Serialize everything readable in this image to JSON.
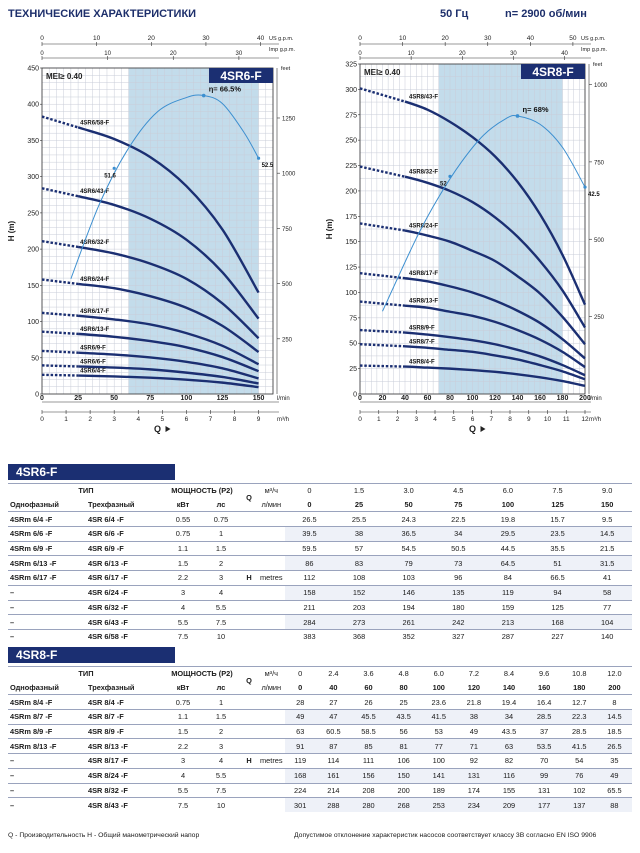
{
  "header": {
    "title": "ТЕХНИЧЕСКИЕ ХАРАКТЕРИСТИКИ",
    "freq": "50 Гц",
    "speed": "n= 2900 об/мин"
  },
  "chart_data": [
    {
      "type": "line",
      "model": "4SR6-F",
      "mei": "MEI≥ 0.40",
      "eff_label": "η= 66.5%",
      "x": [
        0,
        25,
        50,
        75,
        100,
        125,
        150
      ],
      "series": [
        {
          "name": "4SR6/58-F",
          "values": [
            383,
            368,
            352,
            327,
            287,
            227,
            140
          ]
        },
        {
          "name": "4SR6/43-F",
          "values": [
            284,
            273,
            261,
            242,
            213,
            168,
            104
          ]
        },
        {
          "name": "4SR6/32-F",
          "values": [
            211,
            203,
            194,
            180,
            159,
            125,
            77
          ]
        },
        {
          "name": "4SR6/24-F",
          "values": [
            158,
            152,
            146,
            135,
            119,
            94,
            58
          ]
        },
        {
          "name": "4SR6/17-F",
          "values": [
            112,
            108,
            103,
            96,
            84,
            66.5,
            41
          ]
        },
        {
          "name": "4SR6/13-F",
          "values": [
            86,
            83,
            79,
            73,
            64.5,
            51,
            31.5
          ]
        },
        {
          "name": "4SR6/9-F",
          "values": [
            59.5,
            57,
            54.5,
            50.5,
            44.5,
            35.5,
            21.5
          ]
        },
        {
          "name": "4SR6/6-F",
          "values": [
            39.5,
            38,
            36.5,
            34,
            29.5,
            23.5,
            14.5
          ]
        },
        {
          "name": "4SR6/4-F",
          "values": [
            26.5,
            25.5,
            24.3,
            22.5,
            19.8,
            15.7,
            9.5
          ]
        }
      ],
      "efficiency": {
        "x": [
          20,
          40,
          60,
          80,
          100,
          112,
          125,
          140,
          150
        ],
        "y": [
          17.1,
          28.3,
          36.5,
          41.9,
          44.0,
          44.3,
          43.1,
          38.8,
          35.0
        ],
        "labels": [
          {
            "x": 50,
            "y": 33.5,
            "text": "51.6"
          },
          {
            "x": 150,
            "y": 35.0,
            "text": "52.5"
          }
        ]
      },
      "band": [
        60,
        150
      ],
      "xlabel": "Q",
      "ylabel": "H (m)",
      "xlim": [
        0,
        160
      ],
      "ylim": [
        0,
        450
      ],
      "x_ticks": [
        "0",
        "25",
        "50",
        "75",
        "100",
        "125",
        "150"
      ],
      "x_unit": "l/min",
      "y_ticks": [
        "0",
        "50",
        "100",
        "150",
        "200",
        "250",
        "300",
        "350",
        "400",
        "450"
      ],
      "top_ticks": [
        "0",
        "10",
        "20",
        "30",
        "40"
      ],
      "top_unit": "US g.p.m.",
      "top_values": [
        0,
        10,
        20,
        30,
        40
      ],
      "bottom_ticks": [
        "0",
        "1",
        "2",
        "3",
        "4",
        "5",
        "6",
        "7",
        "8",
        "9"
      ],
      "bottom_unit": "m³/h",
      "bottom_values": [
        0,
        1,
        2,
        3,
        4,
        5,
        6,
        7,
        8,
        9
      ],
      "right_ticks": [
        "250",
        "500",
        "750",
        "1000",
        "1250"
      ],
      "right_unit": "feet",
      "right_values": [
        76.2,
        152.4,
        228.6,
        304.8,
        381.0
      ],
      "imp_ticks": [
        "0",
        "10",
        "20",
        "30"
      ],
      "imp_unit": "Imp g.p.m.",
      "imp_values": [
        0,
        10,
        20,
        30
      ]
    },
    {
      "type": "line",
      "model": "4SR8-F",
      "mei": "MEI≥ 0.40",
      "eff_label": "η= 68%",
      "x": [
        0,
        40,
        60,
        80,
        100,
        120,
        140,
        160,
        180,
        200
      ],
      "series": [
        {
          "name": "4SR8/43-F",
          "values": [
            301,
            288,
            280,
            268,
            253,
            234,
            209,
            177,
            137,
            88
          ]
        },
        {
          "name": "4SR8/32-F",
          "values": [
            224,
            214,
            208,
            200,
            189,
            174,
            155,
            131,
            102,
            65.5
          ]
        },
        {
          "name": "4SR8/24-F",
          "values": [
            168,
            161,
            156,
            150,
            141,
            131,
            116,
            99,
            76,
            49
          ]
        },
        {
          "name": "4SR8/17-F",
          "values": [
            119,
            114,
            111,
            106,
            100,
            92,
            82,
            70,
            54,
            35
          ]
        },
        {
          "name": "4SR8/13-F",
          "values": [
            91,
            87,
            85,
            81,
            77,
            71,
            63,
            53.5,
            41.5,
            26.5
          ]
        },
        {
          "name": "4SR8/9-F",
          "values": [
            63,
            60.5,
            58.5,
            56,
            53,
            49,
            43.5,
            37,
            28.5,
            18.5
          ]
        },
        {
          "name": "4SR8/7-F",
          "values": [
            49,
            47,
            45.5,
            43.5,
            41.5,
            38,
            34,
            28.5,
            22.3,
            14.5
          ]
        },
        {
          "name": "4SR8/4-F",
          "values": [
            28,
            27,
            26,
            25,
            23.6,
            21.8,
            19.4,
            16.4,
            12.7,
            8
          ]
        }
      ],
      "efficiency": {
        "x": [
          20,
          50,
          70,
          90,
          110,
          130,
          140,
          160,
          180,
          200
        ],
        "y": [
          10,
          18.8,
          23.8,
          28.0,
          31.3,
          33.3,
          33.6,
          32.6,
          29.8,
          25.0
        ],
        "labels": [
          {
            "x": 80,
            "y": 26.3,
            "text": "52"
          },
          {
            "x": 200,
            "y": 25.0,
            "text": "42.5"
          }
        ]
      },
      "band": [
        70,
        180
      ],
      "xlabel": "Q",
      "ylabel": "H (m)",
      "xlim": [
        0,
        200
      ],
      "ylim": [
        0,
        325
      ],
      "x_ticks": [
        "0",
        "20",
        "40",
        "60",
        "80",
        "100",
        "120",
        "140",
        "160",
        "180",
        "200"
      ],
      "x_unit": "l/min",
      "y_ticks": [
        "0",
        "25",
        "50",
        "75",
        "100",
        "125",
        "150",
        "175",
        "200",
        "225",
        "250",
        "275",
        "300",
        "325"
      ],
      "top_ticks": [
        "0",
        "10",
        "20",
        "30",
        "40",
        "50"
      ],
      "top_unit": "US g.p.m.",
      "top_values": [
        0,
        10,
        20,
        30,
        40,
        50
      ],
      "bottom_ticks": [
        "0",
        "1",
        "2",
        "3",
        "4",
        "5",
        "6",
        "7",
        "8",
        "9",
        "10",
        "11",
        "12"
      ],
      "bottom_unit": "m³/h",
      "bottom_values": [
        0,
        1,
        2,
        3,
        4,
        5,
        6,
        7,
        8,
        9,
        10,
        11,
        12
      ],
      "right_ticks": [
        "250",
        "500",
        "750",
        "1000"
      ],
      "right_unit": "feet",
      "right_values": [
        76.2,
        152.4,
        228.6,
        304.8
      ],
      "imp_ticks": [
        "0",
        "10",
        "20",
        "30",
        "40"
      ],
      "imp_unit": "Imp g.p.m.",
      "imp_values": [
        0,
        10,
        20,
        30,
        40
      ]
    }
  ],
  "tables": [
    {
      "title": "4SR6-F",
      "type_label": "ТИП",
      "power_label": "МОЩНОСТЬ (P2)",
      "q_label": "Q",
      "single_label": "Однофазный",
      "three_label": "Трехфазный",
      "kw_label": "кВт",
      "hp_label": "лс",
      "unit1": "м³/ч",
      "unit2": "л/мин",
      "h_label": "H",
      "h_unit": "metres",
      "q_m3h": [
        "0",
        "1.5",
        "3.0",
        "4.5",
        "6.0",
        "7.5",
        "9.0"
      ],
      "q_lmin": [
        "0",
        "25",
        "50",
        "75",
        "100",
        "125",
        "150"
      ],
      "rows": [
        {
          "single": "4SRm 6/4  -F",
          "three": "4SR 6/4  -F",
          "kw": "0.55",
          "hp": "0.75",
          "h": [
            "26.5",
            "25.5",
            "24.3",
            "22.5",
            "19.8",
            "15.7",
            "9.5"
          ]
        },
        {
          "single": "4SRm 6/6  -F",
          "three": "4SR 6/6  -F",
          "kw": "0.75",
          "hp": "1",
          "h": [
            "39.5",
            "38",
            "36.5",
            "34",
            "29.5",
            "23.5",
            "14.5"
          ]
        },
        {
          "single": "4SRm 6/9  -F",
          "three": "4SR 6/9  -F",
          "kw": "1.1",
          "hp": "1.5",
          "h": [
            "59.5",
            "57",
            "54.5",
            "50.5",
            "44.5",
            "35.5",
            "21.5"
          ]
        },
        {
          "single": "4SRm 6/13 -F",
          "three": "4SR 6/13 -F",
          "kw": "1.5",
          "hp": "2",
          "h": [
            "86",
            "83",
            "79",
            "73",
            "64.5",
            "51",
            "31.5"
          ]
        },
        {
          "single": "4SRm 6/17 -F",
          "three": "4SR 6/17 -F",
          "kw": "2.2",
          "hp": "3",
          "h": [
            "112",
            "108",
            "103",
            "96",
            "84",
            "66.5",
            "41"
          ]
        },
        {
          "single": "–",
          "three": "4SR 6/24 -F",
          "kw": "3",
          "hp": "4",
          "h": [
            "158",
            "152",
            "146",
            "135",
            "119",
            "94",
            "58"
          ]
        },
        {
          "single": "–",
          "three": "4SR 6/32 -F",
          "kw": "4",
          "hp": "5.5",
          "h": [
            "211",
            "203",
            "194",
            "180",
            "159",
            "125",
            "77"
          ]
        },
        {
          "single": "–",
          "three": "4SR 6/43 -F",
          "kw": "5.5",
          "hp": "7.5",
          "h": [
            "284",
            "273",
            "261",
            "242",
            "213",
            "168",
            "104"
          ]
        },
        {
          "single": "–",
          "three": "4SR 6/58 -F",
          "kw": "7.5",
          "hp": "10",
          "h": [
            "383",
            "368",
            "352",
            "327",
            "287",
            "227",
            "140"
          ]
        }
      ]
    },
    {
      "title": "4SR8-F",
      "type_label": "ТИП",
      "power_label": "МОЩНОСТЬ (P2)",
      "q_label": "Q",
      "single_label": "Однофазный",
      "three_label": "Трехфазный",
      "kw_label": "кВт",
      "hp_label": "лс",
      "unit1": "м³/ч",
      "unit2": "л/мин",
      "h_label": "H",
      "h_unit": "metres",
      "q_m3h": [
        "0",
        "2.4",
        "3.6",
        "4.8",
        "6.0",
        "7.2",
        "8.4",
        "9.6",
        "10.8",
        "12.0"
      ],
      "q_lmin": [
        "0",
        "40",
        "60",
        "80",
        "100",
        "120",
        "140",
        "160",
        "180",
        "200"
      ],
      "rows": [
        {
          "single": "4SRm 8/4  -F",
          "three": "4SR 8/4  -F",
          "kw": "0.75",
          "hp": "1",
          "h": [
            "28",
            "27",
            "26",
            "25",
            "23.6",
            "21.8",
            "19.4",
            "16.4",
            "12.7",
            "8"
          ]
        },
        {
          "single": "4SRm 8/7  -F",
          "three": "4SR 8/7  -F",
          "kw": "1.1",
          "hp": "1.5",
          "h": [
            "49",
            "47",
            "45.5",
            "43.5",
            "41.5",
            "38",
            "34",
            "28.5",
            "22.3",
            "14.5"
          ]
        },
        {
          "single": "4SRm 8/9  -F",
          "three": "4SR 8/9  -F",
          "kw": "1.5",
          "hp": "2",
          "h": [
            "63",
            "60.5",
            "58.5",
            "56",
            "53",
            "49",
            "43.5",
            "37",
            "28.5",
            "18.5"
          ]
        },
        {
          "single": "4SRm 8/13 -F",
          "three": "4SR 8/13 -F",
          "kw": "2.2",
          "hp": "3",
          "h": [
            "91",
            "87",
            "85",
            "81",
            "77",
            "71",
            "63",
            "53.5",
            "41.5",
            "26.5"
          ]
        },
        {
          "single": "–",
          "three": "4SR 8/17 -F",
          "kw": "3",
          "hp": "4",
          "h": [
            "119",
            "114",
            "111",
            "106",
            "100",
            "92",
            "82",
            "70",
            "54",
            "35"
          ]
        },
        {
          "single": "–",
          "three": "4SR 8/24 -F",
          "kw": "4",
          "hp": "5.5",
          "h": [
            "168",
            "161",
            "156",
            "150",
            "141",
            "131",
            "116",
            "99",
            "76",
            "49"
          ]
        },
        {
          "single": "–",
          "three": "4SR 8/32 -F",
          "kw": "5.5",
          "hp": "7.5",
          "h": [
            "224",
            "214",
            "208",
            "200",
            "189",
            "174",
            "155",
            "131",
            "102",
            "65.5"
          ]
        },
        {
          "single": "–",
          "three": "4SR 8/43 -F",
          "kw": "7.5",
          "hp": "10",
          "h": [
            "301",
            "288",
            "280",
            "268",
            "253",
            "234",
            "209",
            "177",
            "137",
            "88"
          ]
        }
      ]
    }
  ],
  "footer": {
    "left": "Q - Производительность   H - Общий манометрический напор",
    "right": "Допустимое отклонение характеристик насосов соответствует классу 3B согласно EN ISO 9906"
  },
  "colors": {
    "curve": "#1b2f72",
    "band": "#c3dceb",
    "efficiency": "#3c8fd0",
    "banner": "#1b2f72"
  }
}
